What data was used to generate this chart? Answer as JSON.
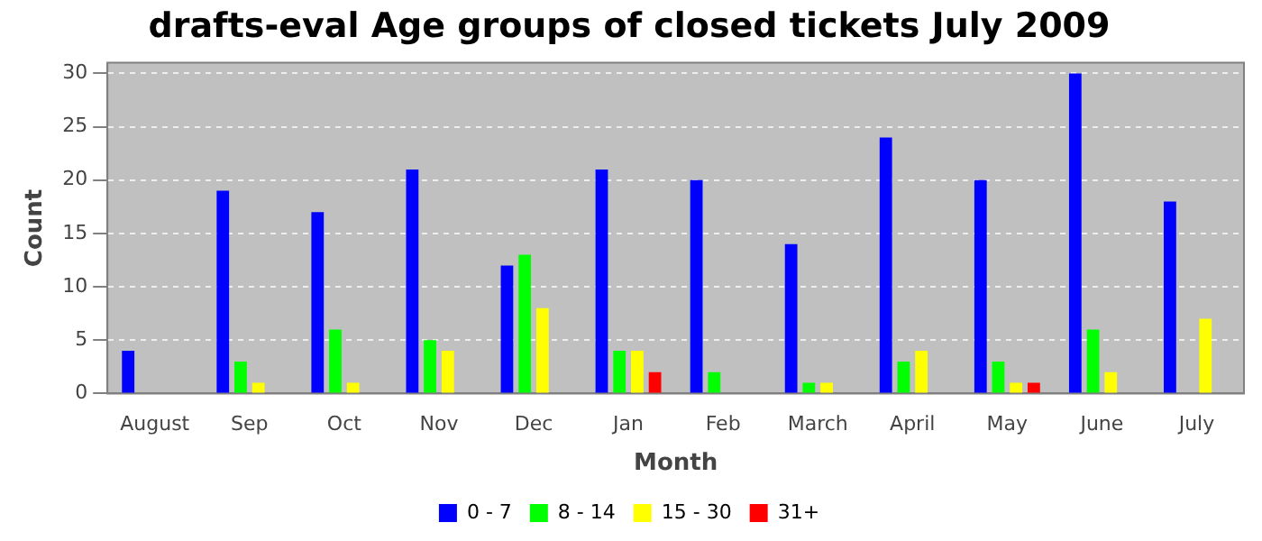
{
  "chart_data": {
    "type": "bar",
    "title": "drafts-eval Age groups of closed tickets July 2009",
    "xlabel": "Month",
    "ylabel": "Count",
    "categories": [
      "August",
      "Sep",
      "Oct",
      "Nov",
      "Dec",
      "Jan",
      "Feb",
      "March",
      "April",
      "May",
      "June",
      "July"
    ],
    "series": [
      {
        "name": "0 - 7",
        "color": "#0000ff",
        "values": [
          4,
          19,
          17,
          21,
          12,
          21,
          20,
          14,
          24,
          20,
          30,
          18
        ]
      },
      {
        "name": "8 - 14",
        "color": "#00ff00",
        "values": [
          null,
          3,
          6,
          5,
          13,
          4,
          2,
          1,
          3,
          3,
          6,
          null
        ]
      },
      {
        "name": "15 - 30",
        "color": "#ffff00",
        "values": [
          null,
          1,
          1,
          4,
          8,
          4,
          null,
          1,
          4,
          1,
          2,
          7
        ]
      },
      {
        "name": "31+",
        "color": "#ff0000",
        "values": [
          null,
          null,
          null,
          null,
          null,
          2,
          null,
          null,
          null,
          1,
          null,
          null
        ]
      }
    ],
    "ylim": [
      0,
      31
    ],
    "yticks": [
      0,
      5,
      10,
      15,
      20,
      25,
      30
    ],
    "grid": "y",
    "legend": "bottom"
  }
}
